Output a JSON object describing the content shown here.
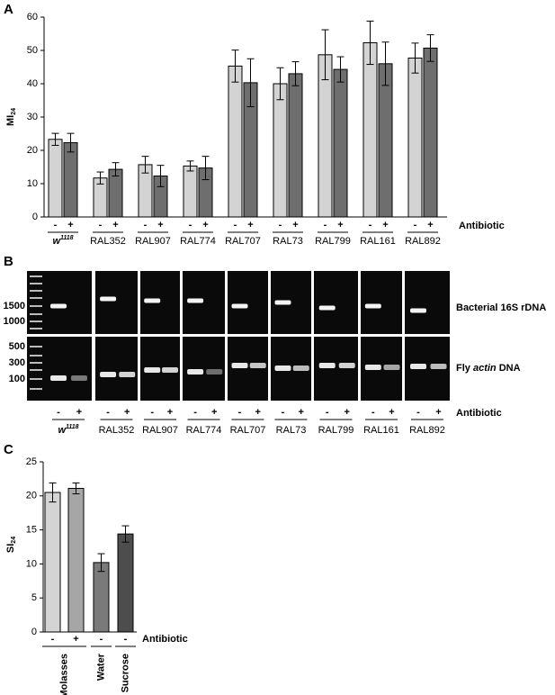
{
  "panel_labels": {
    "a": "A",
    "b": "B",
    "c": "C"
  },
  "chart_data": [
    {
      "type": "bar",
      "y_label": "MI",
      "y_label_sub": "24",
      "legend_title": "Antibiotic",
      "ylim": [
        0,
        60
      ],
      "yticks": [
        0,
        10,
        20,
        30,
        40,
        50,
        60
      ],
      "categories": [
        {
          "text": "w",
          "sup": "1118"
        },
        "RAL352",
        "RAL907",
        "RAL774",
        "RAL707",
        "RAL73",
        "RAL799",
        "RAL161",
        "RAL892"
      ],
      "series": [
        {
          "name": "-",
          "color": "#d3d3d3",
          "values": [
            23.3,
            11.7,
            15.7,
            15.3,
            45.3,
            40.0,
            48.7,
            52.3,
            47.7
          ],
          "errors": [
            1.8,
            1.8,
            2.5,
            1.5,
            4.8,
            4.8,
            7.5,
            6.5,
            4.5
          ]
        },
        {
          "name": "+",
          "color": "#6e6e6e",
          "values": [
            22.3,
            14.3,
            12.3,
            14.7,
            40.3,
            43.0,
            44.3,
            46.0,
            50.7
          ],
          "errors": [
            2.8,
            2.0,
            3.2,
            3.5,
            7.2,
            3.6,
            3.8,
            6.5,
            4.0
          ]
        }
      ]
    },
    {
      "type": "bar",
      "y_label": "SI",
      "y_label_sub": "24",
      "legend_title": "Antibiotic",
      "ylim": [
        0,
        25
      ],
      "yticks": [
        0,
        5,
        10,
        15,
        20,
        25
      ],
      "signs": [
        "-",
        "+",
        "-",
        "-"
      ],
      "groups": [
        {
          "label": "Molasses",
          "bars": 2
        },
        {
          "label": "Water",
          "bars": 1
        },
        {
          "label": "Sucrose",
          "bars": 1
        }
      ],
      "colors": [
        "#d4d4d4",
        "#a6a6a6",
        "#7a7a7a",
        "#4d4d4d"
      ],
      "values": [
        20.5,
        21.1,
        10.2,
        14.4
      ],
      "errors": [
        1.4,
        0.8,
        1.3,
        1.2
      ]
    }
  ],
  "gel": {
    "ladder_labels": [
      "1500",
      "1000",
      "500",
      "300",
      "100"
    ],
    "row_labels": [
      {
        "text": "Bacterial 16S rDNA"
      },
      {
        "pre": "Fly ",
        "italic": "actin",
        "post": " DNA"
      }
    ]
  }
}
